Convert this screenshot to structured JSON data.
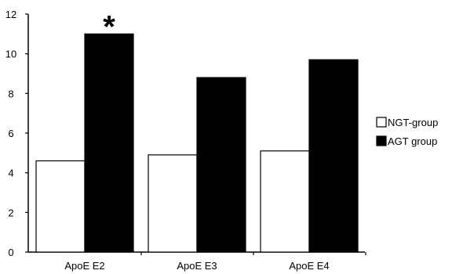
{
  "chart_data": {
    "type": "bar",
    "categories": [
      "ApoE E2",
      "ApoE E3",
      "ApoE E4"
    ],
    "series": [
      {
        "name": "NGT-group",
        "values": [
          4.6,
          4.9,
          5.1
        ],
        "color": "#ffffff"
      },
      {
        "name": "AGT group",
        "values": [
          11.0,
          8.8,
          9.7
        ],
        "color": "#000000"
      }
    ],
    "ylim": [
      0,
      12
    ],
    "yticks": [
      0,
      2,
      4,
      6,
      8,
      10,
      12
    ],
    "title": "",
    "xlabel": "",
    "ylabel": "",
    "legend_position": "right",
    "grid": false,
    "annotations": [
      {
        "text": "*",
        "category": "ApoE E2",
        "series": "AGT group"
      }
    ]
  }
}
